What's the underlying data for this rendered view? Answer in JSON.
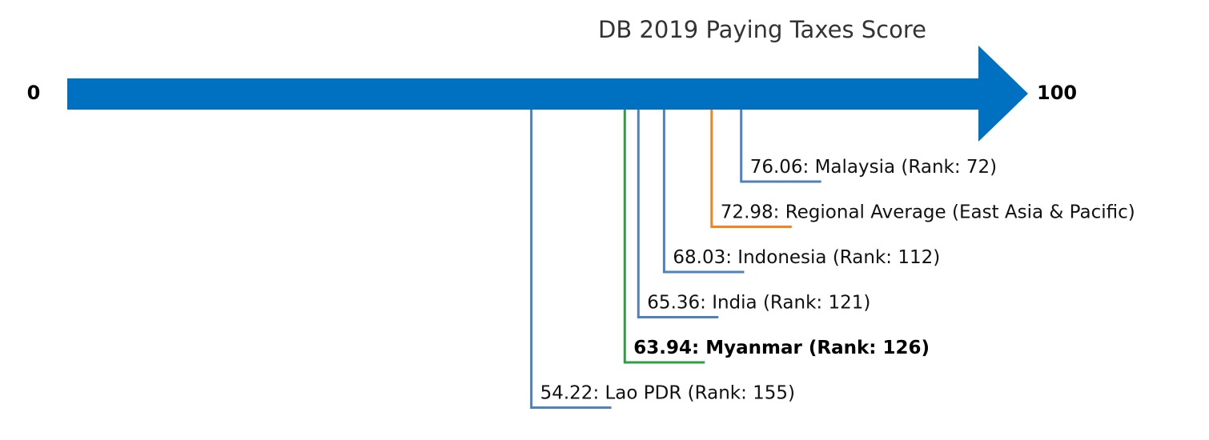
{
  "chart_data": {
    "type": "scatter",
    "title": "DB 2019 Paying Taxes Score",
    "axis": {
      "min": 0,
      "max": 100,
      "min_label": "0",
      "max_label": "100",
      "color": "#0070C0"
    },
    "points": [
      {
        "value": 76.06,
        "label": "76.06: Malaysia (Rank: 72)",
        "color": "#4F81BD",
        "highlight": false
      },
      {
        "value": 72.98,
        "label": "72.98: Regional Average (East Asia & Pacific)",
        "color": "#F58220",
        "highlight": false
      },
      {
        "value": 68.03,
        "label": "68.03: Indonesia (Rank: 112)",
        "color": "#4F81BD",
        "highlight": false
      },
      {
        "value": 65.36,
        "label": "65.36: India (Rank: 121)",
        "color": "#4F81BD",
        "highlight": false
      },
      {
        "value": 63.94,
        "label": "63.94: Myanmar (Rank: 126)",
        "color": "#2CA040",
        "highlight": true
      },
      {
        "value": 54.22,
        "label": "54.22: Lao PDR (Rank: 155)",
        "color": "#4F81BD",
        "highlight": false
      }
    ]
  }
}
